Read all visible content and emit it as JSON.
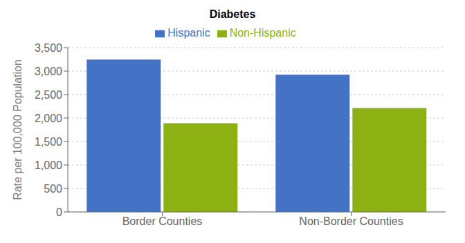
{
  "chart_data": {
    "type": "bar",
    "title": "Diabetes",
    "categories": [
      "Border Counties",
      "Non-Border Counties"
    ],
    "series": [
      {
        "name": "Hispanic",
        "color": "#4472C4",
        "values": [
          3246,
          2922
        ]
      },
      {
        "name": "Non-Hispanic",
        "color": "#8DB012",
        "values": [
          1888,
          2213
        ]
      }
    ],
    "ylabel": "Rate per 100,000 Population",
    "ylim": [
      0,
      3500
    ],
    "yticks": [
      0,
      500,
      {
        "value": 1000,
        "label": "1,000"
      },
      {
        "value": 1500,
        "label": "1,500"
      },
      {
        "value": 2000,
        "label": "2,000"
      },
      {
        "value": 2500,
        "label": "2,500"
      },
      {
        "value": 3000,
        "label": "3,000"
      },
      {
        "value": 3500,
        "label": "3,500"
      }
    ],
    "grid": true,
    "legend": "top"
  }
}
